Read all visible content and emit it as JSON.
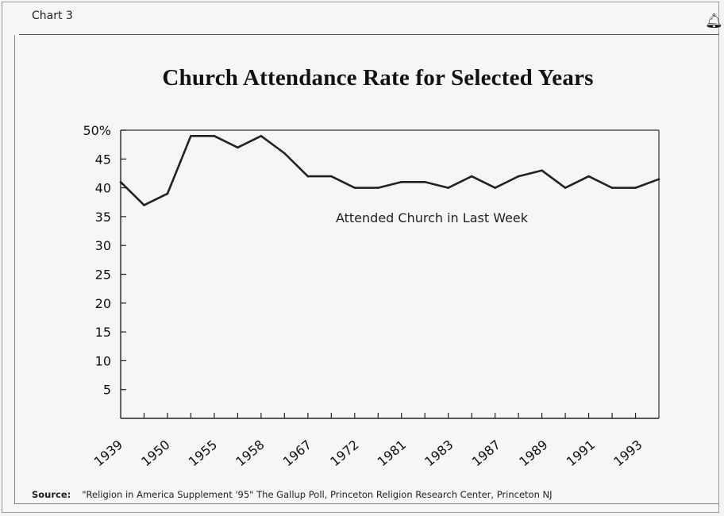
{
  "header": {
    "label": "Chart 3",
    "icon": "bell-icon"
  },
  "chart_data": {
    "type": "line",
    "title": "Church Attendance Rate for Selected Years",
    "xlabel": "",
    "ylabel": "",
    "ylim": [
      0,
      50
    ],
    "yticks": [
      "50%",
      "45",
      "40",
      "35",
      "30",
      "25",
      "20",
      "15",
      "10",
      "5"
    ],
    "x_tick_labels": [
      "1939",
      "1950",
      "1955",
      "1958",
      "1967",
      "1972",
      "1981",
      "1983",
      "1987",
      "1989",
      "1991",
      "1993"
    ],
    "series": [
      {
        "name": "Attended Church in Last Week",
        "values": [
          41,
          37,
          39,
          49,
          49,
          47,
          49,
          46,
          42,
          42,
          40,
          40,
          41,
          41,
          40,
          42,
          40,
          42,
          43,
          40,
          42,
          40,
          40,
          41.5
        ]
      }
    ],
    "grid": false,
    "legend": "inline-center"
  },
  "source": {
    "label": "Source:",
    "text": "\"Religion in America Supplement '95\" The Gallup Poll, Princeton Religion Research Center, Princeton NJ"
  }
}
